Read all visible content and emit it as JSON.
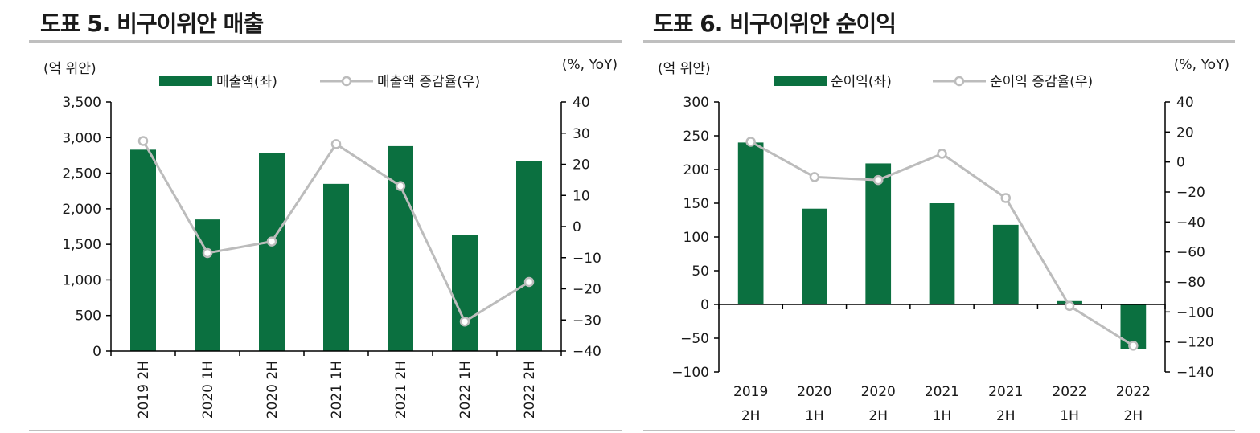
{
  "colors": {
    "bar": "#0b7040",
    "line": "#bcbcbc",
    "marker_fill": "#ffffff",
    "axis": "#000000",
    "rule": "#bfbfbf"
  },
  "chart_data": [
    {
      "type": "bar",
      "title": "도표 5. 비구이위안 매출",
      "left_unit": "(억 위안)",
      "right_unit": "(%, YoY)",
      "categories": [
        "2019 2H",
        "2020 1H",
        "2020 2H",
        "2021 1H",
        "2021 2H",
        "2022 1H",
        "2022 2H"
      ],
      "category_label_orientation": "rotated",
      "series": [
        {
          "name": "매출액(좌)",
          "type": "bar",
          "axis": "left",
          "values": [
            2830,
            1850,
            2780,
            2350,
            2880,
            1630,
            2670
          ]
        },
        {
          "name": "매출액 증감율(우)",
          "type": "line",
          "axis": "right",
          "values": [
            27.5,
            -8.5,
            -4.8,
            26.5,
            13.0,
            -30.5,
            -17.8
          ]
        }
      ],
      "left_axis": {
        "min": 0,
        "max": 3500,
        "ticks": [
          0,
          500,
          1000,
          1500,
          2000,
          2500,
          3000,
          3500
        ],
        "tick_labels": [
          "0",
          "500",
          "1,000",
          "1,500",
          "2,000",
          "2,500",
          "3,000",
          "3,500"
        ]
      },
      "right_axis": {
        "min": -40,
        "max": 40,
        "ticks": [
          -40,
          -30,
          -20,
          -10,
          0,
          10,
          20,
          30,
          40
        ],
        "tick_labels": [
          "−40",
          "−30",
          "−20",
          "−10",
          "0",
          "10",
          "20",
          "30",
          "40"
        ]
      },
      "legend_position": "top",
      "grid": false
    },
    {
      "type": "bar",
      "title": "도표 6. 비구이위안 순이익",
      "left_unit": "(억 위안)",
      "right_unit": "(%, YoY)",
      "categories": [
        [
          "2019",
          "2H"
        ],
        [
          "2020",
          "1H"
        ],
        [
          "2020",
          "2H"
        ],
        [
          "2021",
          "1H"
        ],
        [
          "2021",
          "2H"
        ],
        [
          "2022",
          "1H"
        ],
        [
          "2022",
          "2H"
        ]
      ],
      "category_label_orientation": "two-line",
      "series": [
        {
          "name": "순이익(좌)",
          "type": "bar",
          "axis": "left",
          "values": [
            240,
            142,
            209,
            150,
            118,
            5,
            -66
          ]
        },
        {
          "name": "순이익 증감율(우)",
          "type": "line",
          "axis": "right",
          "values": [
            13.5,
            -10.0,
            -12.0,
            5.5,
            -24.0,
            -96.0,
            -122.5
          ]
        }
      ],
      "left_axis": {
        "min": -100,
        "max": 300,
        "ticks": [
          -100,
          -50,
          0,
          50,
          100,
          150,
          200,
          250,
          300
        ],
        "tick_labels": [
          "−100",
          "−50",
          "0",
          "50",
          "100",
          "150",
          "200",
          "250",
          "300"
        ]
      },
      "right_axis": {
        "min": -140,
        "max": 40,
        "ticks": [
          -140,
          -120,
          -100,
          -80,
          -60,
          -40,
          -20,
          0,
          20,
          40
        ],
        "tick_labels": [
          "−140",
          "−120",
          "−100",
          "−80",
          "−60",
          "−40",
          "−20",
          "0",
          "20",
          "40"
        ]
      },
      "legend_position": "top",
      "grid": false
    }
  ]
}
